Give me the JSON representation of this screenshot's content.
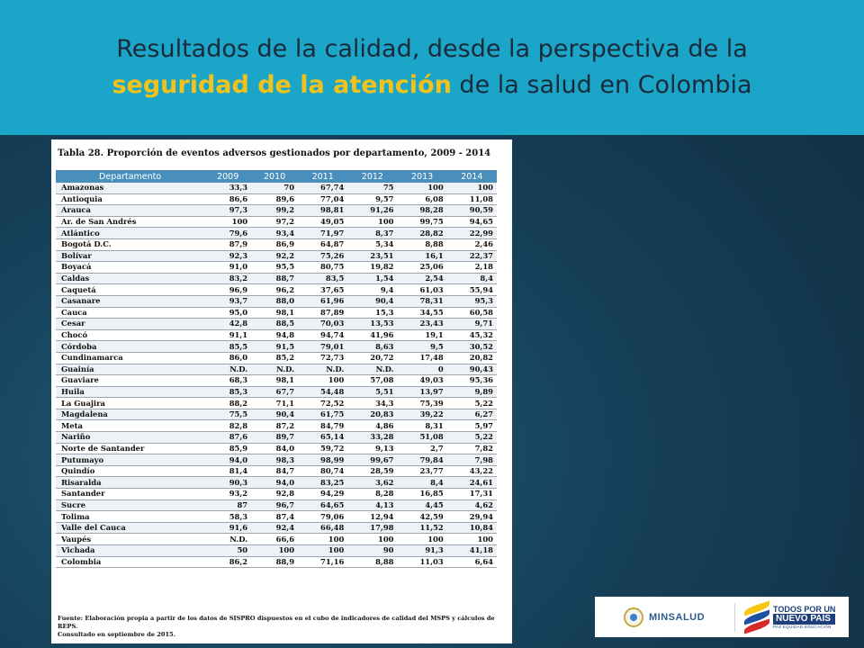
{
  "header": {
    "line1": "Resultados de la calidad, desde la perspectiva de la",
    "line2_highlight": "seguridad de la atención",
    "line2_rest": " de la salud en Colombia",
    "highlight_color": "#f2c21b",
    "background_color": "#1ba6c9"
  },
  "table": {
    "title": "Tabla 28. Proporción de eventos adversos gestionados por departamento, 2009 - 2014",
    "columns": [
      "Departamento",
      "2009",
      "2010",
      "2011",
      "2012",
      "2013",
      "2014"
    ],
    "rows": [
      [
        "Amazonas",
        "33,3",
        "70",
        "67,74",
        "75",
        "100",
        "100"
      ],
      [
        "Antioquia",
        "86,6",
        "89,6",
        "77,04",
        "9,57",
        "6,08",
        "11,08"
      ],
      [
        "Arauca",
        "97,3",
        "99,2",
        "98,81",
        "91,26",
        "98,28",
        "90,59"
      ],
      [
        "Ar. de San Andrés",
        "100",
        "97,2",
        "49,05",
        "100",
        "99,75",
        "94,65"
      ],
      [
        "Atlántico",
        "79,6",
        "93,4",
        "71,97",
        "8,37",
        "28,82",
        "22,99"
      ],
      [
        "Bogotá D.C.",
        "87,9",
        "86,9",
        "64,87",
        "5,34",
        "8,88",
        "2,46"
      ],
      [
        "Bolívar",
        "92,3",
        "92,2",
        "75,26",
        "23,51",
        "16,1",
        "22,37"
      ],
      [
        "Boyacá",
        "91,0",
        "95,5",
        "80,75",
        "19,82",
        "25,06",
        "2,18"
      ],
      [
        "Caldas",
        "83,2",
        "88,7",
        "83,5",
        "1,54",
        "2,54",
        "8,4"
      ],
      [
        "Caquetá",
        "96,9",
        "96,2",
        "37,65",
        "9,4",
        "61,03",
        "55,94"
      ],
      [
        "Casanare",
        "93,7",
        "88,0",
        "61,96",
        "90,4",
        "78,31",
        "95,3"
      ],
      [
        "Cauca",
        "95,0",
        "98,1",
        "87,89",
        "15,3",
        "34,55",
        "60,58"
      ],
      [
        "Cesar",
        "42,8",
        "88,5",
        "70,03",
        "13,53",
        "23,43",
        "9,71"
      ],
      [
        "Chocó",
        "91,1",
        "94,8",
        "94,74",
        "41,96",
        "19,1",
        "45,32"
      ],
      [
        "Córdoba",
        "85,5",
        "91,5",
        "79,01",
        "8,63",
        "9,5",
        "30,52"
      ],
      [
        "Cundinamarca",
        "86,0",
        "85,2",
        "72,73",
        "20,72",
        "17,48",
        "20,82"
      ],
      [
        "Guainía",
        "N.D.",
        "N.D.",
        "N.D.",
        "N.D.",
        "0",
        "90,43"
      ],
      [
        "Guaviare",
        "68,3",
        "98,1",
        "100",
        "57,08",
        "49,03",
        "95,36"
      ],
      [
        "Huila",
        "85,3",
        "67,7",
        "54,48",
        "5,51",
        "13,97",
        "9,89"
      ],
      [
        "La Guajira",
        "88,2",
        "71,1",
        "72,52",
        "34,3",
        "75,39",
        "5,22"
      ],
      [
        "Magdalena",
        "75,5",
        "90,4",
        "61,75",
        "20,83",
        "39,22",
        "6,27"
      ],
      [
        "Meta",
        "82,8",
        "87,2",
        "84,79",
        "4,86",
        "8,31",
        "5,97"
      ],
      [
        "Nariño",
        "87,6",
        "89,7",
        "65,14",
        "33,28",
        "51,08",
        "5,22"
      ],
      [
        "Norte de Santander",
        "85,9",
        "84,0",
        "59,72",
        "9,13",
        "2,7",
        "7,82"
      ],
      [
        "Putumayo",
        "94,0",
        "98,3",
        "98,99",
        "99,67",
        "79,84",
        "7,98"
      ],
      [
        "Quindío",
        "81,4",
        "84,7",
        "80,74",
        "28,59",
        "23,77",
        "43,22"
      ],
      [
        "Risaralda",
        "90,3",
        "94,0",
        "83,25",
        "3,62",
        "8,4",
        "24,61"
      ],
      [
        "Santander",
        "93,2",
        "92,8",
        "94,29",
        "8,28",
        "16,85",
        "17,31"
      ],
      [
        "Sucre",
        "87",
        "96,7",
        "64,65",
        "4,13",
        "4,45",
        "4,62"
      ],
      [
        "Tolima",
        "58,3",
        "87,4",
        "79,06",
        "12,94",
        "42,59",
        "29,94"
      ],
      [
        "Valle del Cauca",
        "91,6",
        "92,4",
        "66,48",
        "17,98",
        "11,52",
        "10,84"
      ],
      [
        "Vaupés",
        "N.D.",
        "66,6",
        "100",
        "100",
        "100",
        "100"
      ],
      [
        "Vichada",
        "50",
        "100",
        "100",
        "90",
        "91,3",
        "41,18"
      ],
      [
        "Colombia",
        "86,2",
        "88,9",
        "71,16",
        "8,88",
        "11,03",
        "6,64"
      ]
    ],
    "source_line1": "Fuente: Elaboración propia a partir de los datos de SISPRO dispuestos en el cubo de indicadores de calidad del MSPS y cálculos de REPS.",
    "source_line2": "Consultado en septiembre de 2015."
  },
  "logos": {
    "minsalud": "MINSALUD",
    "pais_line1": "TODOS POR UN",
    "pais_line2": "NUEVO PAÍS",
    "pais_line3": "PAZ EQUIDAD EDUCACIÓN"
  }
}
